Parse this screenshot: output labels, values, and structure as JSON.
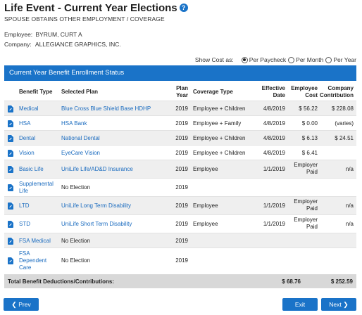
{
  "header": {
    "title": "Life Event - Current Year Elections",
    "help_icon": "question-circle-icon",
    "subtitle": "SPOUSE OBTAINS OTHER EMPLOYMENT / COVERAGE"
  },
  "info": {
    "employee_label": "Employee:",
    "employee_value": "BYRUM, CURT A",
    "company_label": "Company:",
    "company_value": "ALLEGIANCE GRAPHICS, INC."
  },
  "cost_as": {
    "label": "Show Cost as:",
    "options": [
      "Per Paycheck",
      "Per Month",
      "Per Year"
    ],
    "selected": "Per Paycheck"
  },
  "panel": {
    "title": "Current Year Benefit Enrollment Status"
  },
  "table": {
    "headers": {
      "benefit_type": "Benefit Type",
      "selected_plan": "Selected Plan",
      "plan_year_1": "Plan",
      "plan_year_2": "Year",
      "coverage_type": "Coverage Type",
      "effective_1": "Effective",
      "effective_2": "Date",
      "employee_1": "Employee",
      "employee_2": "Cost",
      "company_1": "Company",
      "company_2": "Contribution"
    },
    "rows": [
      {
        "benefit": "Medical",
        "plan": "Blue Cross Blue Shield Base HDHP",
        "year": "2019",
        "coverage": "Employee + Children",
        "date": "4/8/2019",
        "emp": "$ 56.22",
        "emp2": "",
        "co": "$ 228.08"
      },
      {
        "benefit": "HSA",
        "plan": "HSA Bank",
        "year": "2019",
        "coverage": "Employee + Family",
        "date": "4/8/2019",
        "emp": "$ 0.00",
        "emp2": "",
        "co": "(varies)"
      },
      {
        "benefit": "Dental",
        "plan": "National Dental",
        "year": "2019",
        "coverage": "Employee + Children",
        "date": "4/8/2019",
        "emp": "$ 6.13",
        "emp2": "",
        "co": "$ 24.51"
      },
      {
        "benefit": "Vision",
        "plan": "EyeCare Vision",
        "year": "2019",
        "coverage": "Employee + Children",
        "date": "4/8/2019",
        "emp": "$ 6.41",
        "emp2": "",
        "co": ""
      },
      {
        "benefit": "Basic Life",
        "plan": "UniLife Life/AD&D Insurance",
        "year": "2019",
        "coverage": "Employee",
        "date": "1/1/2019",
        "emp": "Employer",
        "emp2": "Paid",
        "co": "n/a"
      },
      {
        "benefit": "Supplemental",
        "benefit2": "Life",
        "plan": "No Election",
        "year": "2019",
        "coverage": "",
        "date": "",
        "emp": "",
        "emp2": "",
        "co": ""
      },
      {
        "benefit": "LTD",
        "plan": "UniLife Long Term Disability",
        "year": "2019",
        "coverage": "Employee",
        "date": "1/1/2019",
        "emp": "Employer",
        "emp2": "Paid",
        "co": "n/a"
      },
      {
        "benefit": "STD",
        "plan": "UniLife Short Term Disability",
        "year": "2019",
        "coverage": "Employee",
        "date": "1/1/2019",
        "emp": "Employer",
        "emp2": "Paid",
        "co": "n/a"
      },
      {
        "benefit": "FSA Medical",
        "plan": "No Election",
        "year": "2019",
        "coverage": "",
        "date": "",
        "emp": "",
        "emp2": "",
        "co": ""
      },
      {
        "benefit": "FSA",
        "benefit2": "Dependent",
        "benefit3": "Care",
        "plan": "No Election",
        "year": "2019",
        "coverage": "",
        "date": "",
        "emp": "",
        "emp2": "",
        "co": ""
      }
    ],
    "total_label": "Total Benefit Deductions/Contributions:",
    "total_employee": "$ 68.76",
    "total_company": "$ 252.59"
  },
  "buttons": {
    "prev": "Prev",
    "exit": "Exit",
    "next": "Next"
  },
  "colors": {
    "accent": "#1a73c8",
    "link": "#1a6bbf",
    "shade": "#efefef",
    "total_bg": "#d8d8d8"
  }
}
